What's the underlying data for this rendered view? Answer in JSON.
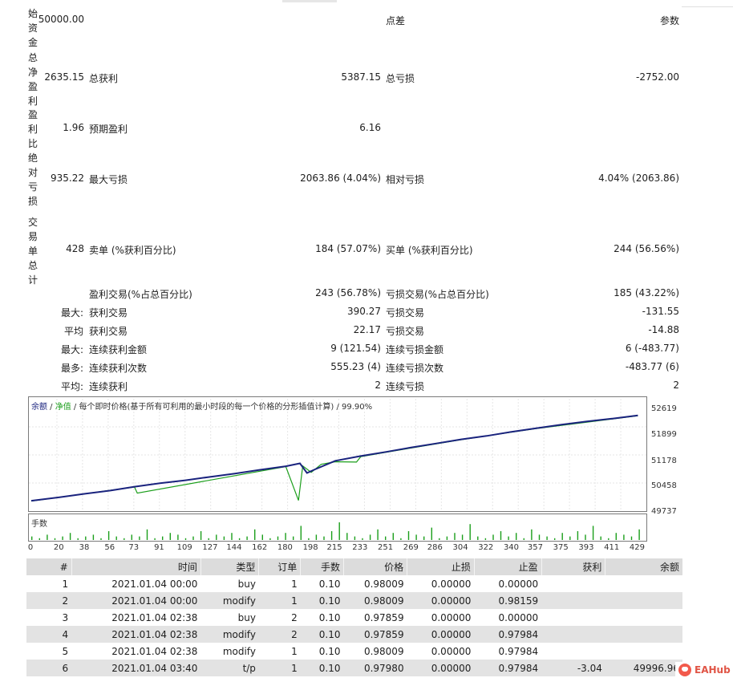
{
  "summary": {
    "initial_deposit": {
      "label": "始资金",
      "value": "50000.00"
    },
    "spread_label": "点差",
    "params_label": "参数",
    "net_profit": {
      "label": "总净盈利",
      "value": "2635.15"
    },
    "gross_profit": {
      "label": "总获利",
      "value": "5387.15"
    },
    "gross_loss": {
      "label": "总亏损",
      "value": "-2752.00"
    },
    "profit_factor": {
      "label": "盈利比",
      "value": "1.96"
    },
    "expected_payoff": {
      "label": "预期盈利",
      "value": "6.16"
    },
    "absolute_drawdown": {
      "label": "绝对亏损",
      "value": "935.22"
    },
    "max_drawdown": {
      "label": "最大亏损",
      "value": "2063.86 (4.04%)"
    },
    "relative_drawdown": {
      "label": "相对亏损",
      "value": "4.04% (2063.86)"
    },
    "total_trades": {
      "label": "交易单总计",
      "value": "428"
    },
    "short_positions": {
      "label": "卖单 (%获利百分比)",
      "value": "184 (57.07%)"
    },
    "long_positions": {
      "label": "买单 (%获利百分比)",
      "value": "244 (56.56%)"
    },
    "profit_trades": {
      "label": "盈利交易(%占总百分比)",
      "value": "243 (56.78%)"
    },
    "loss_trades": {
      "label": "亏损交易(%占总百分比)",
      "value": "185 (43.22%)"
    },
    "largest": {
      "prefix": "最大:",
      "profit_label": "获利交易",
      "profit_value": "390.27",
      "loss_label": "亏损交易",
      "loss_value": "-131.55"
    },
    "average": {
      "prefix": "平均",
      "profit_label": "获利交易",
      "profit_value": "22.17",
      "loss_label": "亏损交易",
      "loss_value": "-14.88"
    },
    "max_consec_amount": {
      "prefix": "最大:",
      "win_label": "连续获利金额",
      "win_value": "9 (121.54)",
      "loss_label": "连续亏损金额",
      "loss_value": "6 (-483.77)"
    },
    "max_consec_count": {
      "prefix": "最多:",
      "win_label": "连续获利次数",
      "win_value": "555.23 (4)",
      "loss_label": "连续亏损次数",
      "loss_value": "-483.77 (6)"
    },
    "avg_consec": {
      "prefix": "平均:",
      "win_label": "连续获利",
      "win_value": "2",
      "loss_label": "连续亏损",
      "loss_value": "2"
    }
  },
  "chart": {
    "legend_balance": "余额",
    "legend_sep": " / ",
    "legend_equity": "净值",
    "legend_rest": " / 每个即时价格(基于所有可利用的最小时段的每一个价格的分形插值计算) / 99.90%",
    "lots_label": "手数",
    "balance_color": "#1a237e",
    "equity_color": "#1b9e1b",
    "lots_color": "#1b9e1b",
    "y_ticks": [
      "52619",
      "51899",
      "51178",
      "50458",
      "49737"
    ],
    "x_ticks": [
      "0",
      "20",
      "38",
      "56",
      "73",
      "91",
      "109",
      "127",
      "144",
      "162",
      "180",
      "198",
      "215",
      "233",
      "251",
      "269",
      "286",
      "304",
      "322",
      "340",
      "357",
      "375",
      "393",
      "411",
      "429"
    ]
  },
  "chart_data": {
    "type": "line",
    "ylim": [
      49737,
      52900
    ],
    "xlim": [
      0,
      435
    ],
    "series": [
      {
        "name": "余额",
        "points": [
          [
            0,
            50010
          ],
          [
            20,
            50120
          ],
          [
            38,
            50230
          ],
          [
            56,
            50330
          ],
          [
            73,
            50450
          ],
          [
            91,
            50560
          ],
          [
            109,
            50650
          ],
          [
            127,
            50760
          ],
          [
            144,
            50860
          ],
          [
            162,
            50980
          ],
          [
            180,
            51090
          ],
          [
            190,
            51180
          ],
          [
            195,
            50880
          ],
          [
            200,
            50980
          ],
          [
            215,
            51260
          ],
          [
            233,
            51410
          ],
          [
            251,
            51540
          ],
          [
            269,
            51680
          ],
          [
            286,
            51800
          ],
          [
            304,
            51930
          ],
          [
            322,
            52040
          ],
          [
            340,
            52170
          ],
          [
            357,
            52280
          ],
          [
            375,
            52390
          ],
          [
            393,
            52490
          ],
          [
            411,
            52580
          ],
          [
            429,
            52680
          ]
        ]
      },
      {
        "name": "净值",
        "points": [
          [
            0,
            50000
          ],
          [
            73,
            50440
          ],
          [
            75,
            50250
          ],
          [
            180,
            51080
          ],
          [
            189,
            50020
          ],
          [
            192,
            51100
          ],
          [
            198,
            50900
          ],
          [
            205,
            51150
          ],
          [
            215,
            51230
          ],
          [
            230,
            51220
          ],
          [
            233,
            51390
          ],
          [
            251,
            51530
          ],
          [
            304,
            51920
          ],
          [
            357,
            52270
          ],
          [
            429,
            52670
          ]
        ]
      }
    ],
    "lots": [
      2,
      1,
      3,
      1,
      2,
      4,
      1,
      2,
      3,
      1,
      5,
      2,
      1,
      3,
      2,
      6,
      1,
      2,
      4,
      3,
      1,
      2,
      5,
      1,
      3,
      2,
      4,
      1,
      2,
      6,
      3,
      1,
      2,
      4,
      2,
      8,
      1,
      3,
      2,
      5,
      10,
      4,
      2,
      1,
      3,
      6,
      2,
      4,
      1,
      5,
      3,
      2,
      7,
      1,
      2,
      4,
      3,
      9,
      2,
      1,
      3,
      5,
      2,
      4,
      1,
      6,
      3,
      2,
      1,
      4,
      2,
      5,
      3,
      8,
      2,
      1,
      4,
      3,
      2,
      6
    ]
  },
  "trades": {
    "headers": [
      "#",
      "时间",
      "类型",
      "订单",
      "手数",
      "价格",
      "止损",
      "止盈",
      "获利",
      "余额"
    ],
    "rows": [
      [
        "1",
        "2021.01.04 00:00",
        "buy",
        "1",
        "0.10",
        "0.98009",
        "0.00000",
        "0.00000",
        "",
        ""
      ],
      [
        "2",
        "2021.01.04 00:00",
        "modify",
        "1",
        "0.10",
        "0.98009",
        "0.00000",
        "0.98159",
        "",
        ""
      ],
      [
        "3",
        "2021.01.04 02:38",
        "buy",
        "2",
        "0.10",
        "0.97859",
        "0.00000",
        "0.00000",
        "",
        ""
      ],
      [
        "4",
        "2021.01.04 02:38",
        "modify",
        "2",
        "0.10",
        "0.97859",
        "0.00000",
        "0.97984",
        "",
        ""
      ],
      [
        "5",
        "2021.01.04 02:38",
        "modify",
        "1",
        "0.10",
        "0.98009",
        "0.00000",
        "0.97984",
        "",
        ""
      ],
      [
        "6",
        "2021.01.04 03:40",
        "t/p",
        "1",
        "0.10",
        "0.97980",
        "0.00000",
        "0.97984",
        "-3.04",
        "49996.96"
      ]
    ]
  },
  "watermark": {
    "text": "EAHub"
  }
}
